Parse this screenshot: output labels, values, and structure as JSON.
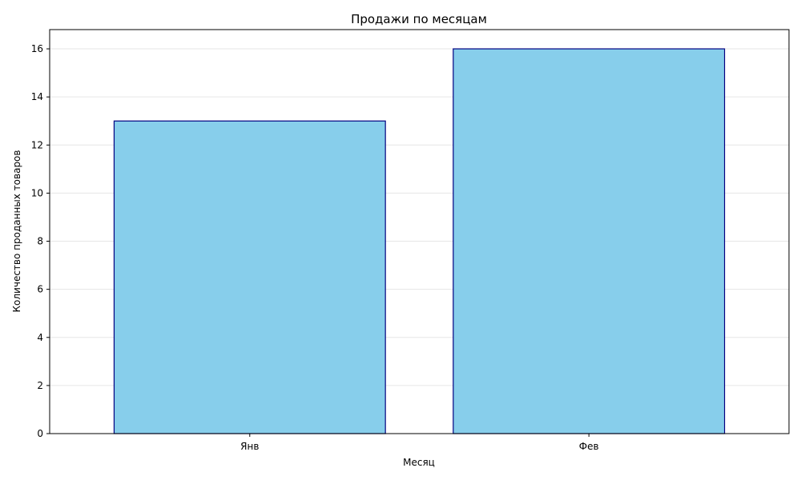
{
  "chart_data": {
    "type": "bar",
    "title": "Продажи по месяцам",
    "xlabel": "Месяц",
    "ylabel": "Количество проданных товаров",
    "categories": [
      "Янв",
      "Фев"
    ],
    "values": [
      13,
      16
    ],
    "ylim": [
      0,
      16.8
    ],
    "yticks": [
      0,
      2,
      4,
      6,
      8,
      10,
      12,
      14,
      16
    ],
    "grid": "y",
    "legend": "none",
    "colors": {
      "bar_fill": "#87CEEB",
      "bar_edge": "#000080",
      "grid": "#e6e6e6",
      "axis": "#000000"
    }
  }
}
